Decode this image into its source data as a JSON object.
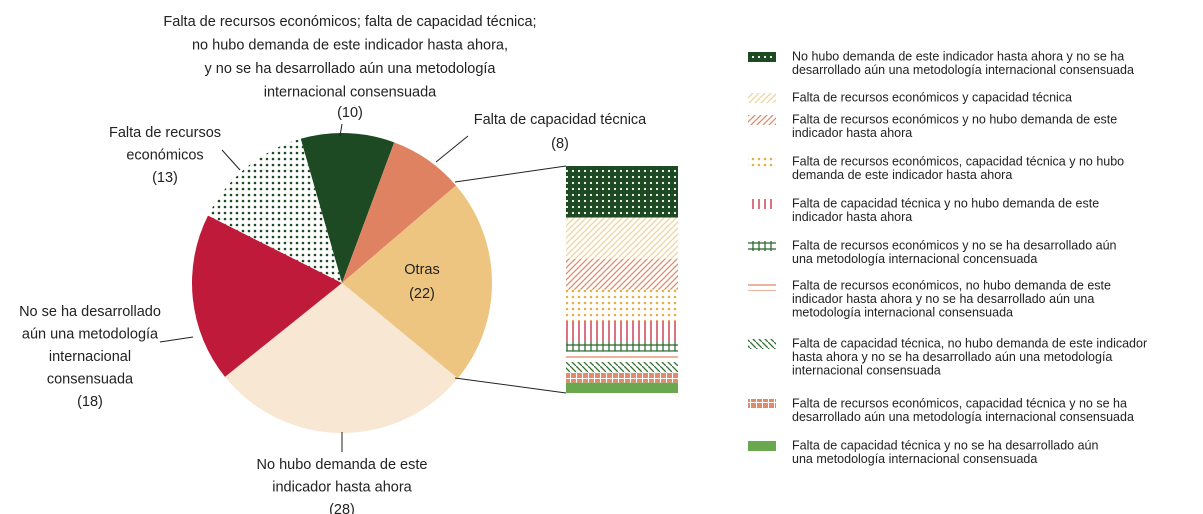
{
  "chart_data": [
    {
      "type": "pie",
      "categories": [
        [
          "Falta de recursos económicos; falta de capacidad técnica;",
          "no hubo demanda de este indicador hasta ahora,",
          "y no se ha desarrollado aún una metodología",
          "internacional consensuada"
        ],
        [
          "Falta de capacidad técnica"
        ],
        [
          "Otras"
        ],
        [
          "No hubo demanda de este",
          "indicador hasta ahora"
        ],
        [
          "No se ha desarrollado",
          "aún una metodología",
          "internacional",
          "consensuada"
        ],
        [
          "Falta de recursos",
          "económicos"
        ]
      ],
      "values": [
        10,
        8,
        22,
        28,
        18,
        13
      ],
      "value_labels": [
        "(10)",
        "(8)",
        "(22)",
        "(28)",
        "(18)",
        "(13)"
      ],
      "colors": [
        "#1d4a22",
        "#df8262",
        "#edc580",
        "#f8e7d3",
        "#c01a3a",
        "#1d4a22"
      ],
      "patterns": [
        "solid",
        "solid",
        "solid",
        "solid",
        "solid",
        "dots"
      ]
    },
    {
      "type": "bar",
      "stacked": true,
      "series": [
        {
          "name": [
            "No hubo demanda de este indicador hasta ahora y no se ha",
            "desarrollado aún una metodología internacional consensuada"
          ],
          "color": "#1d4a22",
          "pattern": "dots-inverse",
          "values": [
            5
          ]
        },
        {
          "name": [
            "Falta de recursos económicos y capacidad técnica"
          ],
          "color": "#f0d49a",
          "pattern": "diag",
          "values": [
            4
          ]
        },
        {
          "name": [
            "Falta de recursos económicos y no hubo demanda de este",
            "indicador hasta ahora"
          ],
          "color": "#e28a6a",
          "pattern": "diag",
          "values": [
            3
          ]
        },
        {
          "name": [
            "Falta de recursos económicos, capacidad técnica y no hubo",
            "demanda de este indicador hasta ahora"
          ],
          "color": "#e3b244",
          "pattern": "dots",
          "values": [
            3
          ]
        },
        {
          "name": [
            "Falta de capacidad técnica y no hubo demanda de este",
            "indicador hasta ahora"
          ],
          "color": "#c8283e",
          "pattern": "vlines",
          "values": [
            2
          ]
        },
        {
          "name": [
            "Falta de recursos económicos y no se ha desarrollado aún",
            "una metodología  internacional concensuada"
          ],
          "color": "#2f6b2f",
          "pattern": "hash",
          "values": [
            1
          ]
        },
        {
          "name": [
            "Falta de recursos económicos, no hubo demanda de este",
            "indicador hasta ahora y no se ha desarrollado aún una",
            "metodología internacional consensuada"
          ],
          "color": "#e28a6a",
          "pattern": "hlines",
          "values": [
            1
          ]
        },
        {
          "name": [
            "Falta de capacidad técnica, no hubo demanda de este indicador",
            "hasta ahora y no se ha desarrollado aún una metodología",
            "internacional consensuada"
          ],
          "color": "#2f6b2f",
          "pattern": "diag-back",
          "values": [
            1
          ]
        },
        {
          "name": [
            "Falta de recursos económicos, capacidad técnica y no se ha",
            "desarrollado aún una metodología internacional consensuada"
          ],
          "color": "#e28a6a",
          "pattern": "grid",
          "values": [
            1
          ]
        },
        {
          "name": [
            "Falta de capacidad técnica y no se ha desarrollado aún",
            "una metodología  internacional consensuada"
          ],
          "color": "#6aa84f",
          "pattern": "solid",
          "values": [
            1
          ]
        }
      ]
    }
  ]
}
